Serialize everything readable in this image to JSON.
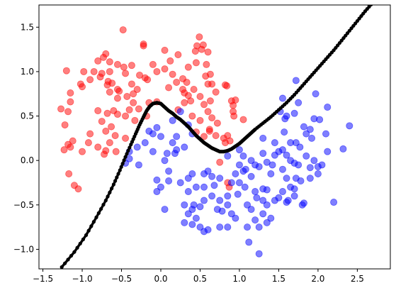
{
  "chart_data": {
    "type": "scatter",
    "title": "",
    "xlabel": "",
    "ylabel": "",
    "xlim": [
      -1.55,
      2.92
    ],
    "ylim": [
      -1.22,
      1.75
    ],
    "grid": false,
    "x_ticks": [
      "−1.5",
      "−1.0",
      "−0.5",
      "0.0",
      "0.5",
      "1.0",
      "1.5",
      "2.0",
      "2.5"
    ],
    "x_tick_values": [
      -1.5,
      -1.0,
      -0.5,
      0.0,
      0.5,
      1.0,
      1.5,
      2.0,
      2.5
    ],
    "y_ticks": [
      "−1.0",
      "−0.5",
      "0.0",
      "0.5",
      "1.0",
      "1.5"
    ],
    "y_tick_values": [
      -1.0,
      -0.5,
      0.0,
      0.5,
      1.0,
      1.5
    ],
    "series": [
      {
        "color": "#ff0000",
        "marker": "circle",
        "opacity": 0.5,
        "points": [
          [
            -0.48,
            1.47
          ],
          [
            0.49,
            1.39
          ],
          [
            0.46,
            1.29
          ],
          [
            0.54,
            1.3
          ],
          [
            0.52,
            1.25
          ],
          [
            -0.7,
            1.2
          ],
          [
            -0.73,
            1.16
          ],
          [
            -0.22,
            1.31
          ],
          [
            -0.22,
            1.29
          ],
          [
            0.05,
            1.24
          ],
          [
            0.22,
            1.19
          ],
          [
            0.44,
            1.23
          ],
          [
            0.6,
            1.22
          ],
          [
            -0.8,
            1.12
          ],
          [
            -0.65,
            1.11
          ],
          [
            -0.55,
            1.08
          ],
          [
            -0.47,
            1.05
          ],
          [
            -0.37,
            1.07
          ],
          [
            -0.1,
            1.08
          ],
          [
            0.12,
            1.12
          ],
          [
            0.35,
            1.05
          ],
          [
            0.45,
            1.1
          ],
          [
            0.58,
            1.08
          ],
          [
            -1.2,
            1.01
          ],
          [
            -0.98,
            1.0
          ],
          [
            -0.85,
            1.0
          ],
          [
            -0.75,
            0.98
          ],
          [
            -0.65,
            1.0
          ],
          [
            -0.45,
            0.98
          ],
          [
            -0.27,
            0.96
          ],
          [
            -0.2,
            0.93
          ],
          [
            -0.05,
            1.0
          ],
          [
            0.05,
            1.03
          ],
          [
            0.15,
            0.97
          ],
          [
            0.28,
            0.92
          ],
          [
            0.57,
            0.95
          ],
          [
            0.63,
            0.97
          ],
          [
            -0.9,
            0.91
          ],
          [
            -0.77,
            0.94
          ],
          [
            -0.67,
            0.89
          ],
          [
            -0.62,
            0.87
          ],
          [
            -0.37,
            0.86
          ],
          [
            -0.17,
            0.91
          ],
          [
            0.2,
            0.88
          ],
          [
            0.33,
            0.88
          ],
          [
            0.6,
            0.86
          ],
          [
            -1.02,
            0.86
          ],
          [
            -1.0,
            0.83
          ],
          [
            -0.68,
            0.85
          ],
          [
            -0.55,
            0.8
          ],
          [
            -0.3,
            0.8
          ],
          [
            0.1,
            0.82
          ],
          [
            0.28,
            0.8
          ],
          [
            0.42,
            0.8
          ],
          [
            0.65,
            0.86
          ],
          [
            0.7,
            0.77
          ],
          [
            0.82,
            0.85
          ],
          [
            0.84,
            0.84
          ],
          [
            -0.65,
            0.77
          ],
          [
            -0.53,
            0.78
          ],
          [
            -0.35,
            0.75
          ],
          [
            0.3,
            0.76
          ],
          [
            0.35,
            0.73
          ],
          [
            0.5,
            0.72
          ],
          [
            -1.15,
            0.76
          ],
          [
            -0.55,
            0.7
          ],
          [
            -0.43,
            0.72
          ],
          [
            0.38,
            0.67
          ],
          [
            0.63,
            0.67
          ],
          [
            0.9,
            0.67
          ],
          [
            0.95,
            0.68
          ],
          [
            -1.15,
            0.66
          ],
          [
            -0.35,
            0.65
          ],
          [
            -0.15,
            0.65
          ],
          [
            -0.05,
            0.66
          ],
          [
            0.3,
            0.65
          ],
          [
            0.55,
            0.63
          ],
          [
            0.92,
            0.62
          ],
          [
            -1.27,
            0.58
          ],
          [
            -1.18,
            0.55
          ],
          [
            -0.8,
            0.56
          ],
          [
            -0.68,
            0.53
          ],
          [
            -0.6,
            0.56
          ],
          [
            -0.4,
            0.57
          ],
          [
            -0.28,
            0.58
          ],
          [
            0.22,
            0.57
          ],
          [
            0.6,
            0.55
          ],
          [
            0.92,
            0.55
          ],
          [
            -0.45,
            0.5
          ],
          [
            -0.55,
            0.52
          ],
          [
            -0.18,
            0.5
          ],
          [
            0.4,
            0.5
          ],
          [
            0.65,
            0.48
          ],
          [
            0.93,
            0.5
          ],
          [
            1.05,
            0.46
          ],
          [
            -0.75,
            0.44
          ],
          [
            -0.33,
            0.45
          ],
          [
            0.5,
            0.45
          ],
          [
            0.72,
            0.42
          ],
          [
            -1.22,
            0.4
          ],
          [
            -0.63,
            0.38
          ],
          [
            0.62,
            0.35
          ],
          [
            0.62,
            0.33
          ],
          [
            -0.7,
            0.33
          ],
          [
            0.45,
            0.32
          ],
          [
            -0.9,
            0.3
          ],
          [
            -0.58,
            0.28
          ],
          [
            0.7,
            0.28
          ],
          [
            0.85,
            0.28
          ],
          [
            0.55,
            0.27
          ],
          [
            -0.45,
            0.25
          ],
          [
            0.8,
            0.25
          ],
          [
            -1.12,
            0.22
          ],
          [
            -1.18,
            0.18
          ],
          [
            -1.23,
            0.12
          ],
          [
            -0.65,
            0.2
          ],
          [
            -0.92,
            0.2
          ],
          [
            0.88,
            0.22
          ],
          [
            0.82,
            0.2
          ],
          [
            -1.15,
            0.15
          ],
          [
            -0.8,
            0.15
          ],
          [
            -0.7,
            0.11
          ],
          [
            -0.57,
            0.1
          ],
          [
            -1.0,
            0.1
          ],
          [
            -0.72,
            0.07
          ],
          [
            -1.17,
            -0.15
          ],
          [
            -1.1,
            -0.28
          ],
          [
            -1.05,
            -0.32
          ],
          [
            0.75,
            -0.02
          ],
          [
            0.85,
            -0.25
          ],
          [
            0.87,
            -0.3
          ]
        ]
      },
      {
        "color": "#0000ff",
        "marker": "circle",
        "opacity": 0.5,
        "points": [
          [
            1.72,
            0.9
          ],
          [
            1.97,
            0.75
          ],
          [
            1.55,
            0.7
          ],
          [
            1.75,
            0.65
          ],
          [
            2.12,
            0.6
          ],
          [
            1.52,
            0.55
          ],
          [
            1.6,
            0.5
          ],
          [
            1.7,
            0.53
          ],
          [
            1.95,
            0.47
          ],
          [
            1.58,
            0.47
          ],
          [
            2.02,
            0.46
          ],
          [
            2.4,
            0.39
          ],
          [
            1.82,
            0.38
          ],
          [
            1.9,
            0.35
          ],
          [
            1.57,
            0.32
          ],
          [
            1.85,
            0.3
          ],
          [
            2.1,
            0.3
          ],
          [
            1.3,
            0.25
          ],
          [
            1.92,
            0.25
          ],
          [
            1.45,
            0.2
          ],
          [
            1.65,
            0.2
          ],
          [
            1.72,
            0.2
          ],
          [
            1.77,
            0.15
          ],
          [
            2.32,
            0.13
          ],
          [
            2.12,
            0.1
          ],
          [
            1.55,
            0.12
          ],
          [
            1.3,
            0.08
          ],
          [
            1.45,
            0.06
          ],
          [
            1.6,
            0.06
          ],
          [
            1.85,
            0.05
          ],
          [
            1.95,
            0.0
          ],
          [
            1.65,
            0.0
          ],
          [
            2.05,
            -0.05
          ],
          [
            1.15,
            0.0
          ],
          [
            1.05,
            0.05
          ],
          [
            1.35,
            -0.02
          ],
          [
            1.42,
            -0.05
          ],
          [
            1.7,
            -0.03
          ],
          [
            1.75,
            -0.05
          ],
          [
            1.9,
            -0.08
          ],
          [
            2.0,
            -0.07
          ],
          [
            1.55,
            -0.1
          ],
          [
            1.25,
            -0.07
          ],
          [
            1.08,
            -0.1
          ],
          [
            0.95,
            -0.15
          ],
          [
            1.05,
            -0.12
          ],
          [
            1.15,
            -0.18
          ],
          [
            1.6,
            -0.2
          ],
          [
            1.72,
            -0.2
          ],
          [
            1.9,
            -0.2
          ],
          [
            2.0,
            -0.15
          ],
          [
            1.78,
            -0.23
          ],
          [
            0.75,
            -0.2
          ],
          [
            0.65,
            -0.18
          ],
          [
            0.55,
            -0.15
          ],
          [
            0.6,
            -0.12
          ],
          [
            0.4,
            -0.15
          ],
          [
            0.35,
            -0.2
          ],
          [
            0.25,
            -0.25
          ],
          [
            0.1,
            -0.23
          ],
          [
            -0.05,
            -0.22
          ],
          [
            0.0,
            -0.3
          ],
          [
            1.0,
            -0.25
          ],
          [
            0.9,
            -0.25
          ],
          [
            0.68,
            -0.28
          ],
          [
            0.55,
            -0.3
          ],
          [
            0.45,
            -0.3
          ],
          [
            0.35,
            -0.35
          ],
          [
            1.3,
            -0.32
          ],
          [
            1.35,
            -0.33
          ],
          [
            1.55,
            -0.35
          ],
          [
            1.65,
            -0.3
          ],
          [
            1.7,
            -0.32
          ],
          [
            1.62,
            -0.45
          ],
          [
            1.6,
            -0.47
          ],
          [
            1.7,
            -0.4
          ],
          [
            1.82,
            -0.48
          ],
          [
            1.8,
            -0.5
          ],
          [
            1.5,
            -0.42
          ],
          [
            1.45,
            -0.45
          ],
          [
            2.2,
            -0.47
          ],
          [
            1.07,
            -0.3
          ],
          [
            1.2,
            -0.35
          ],
          [
            1.22,
            -0.42
          ],
          [
            0.98,
            -0.38
          ],
          [
            0.85,
            -0.4
          ],
          [
            0.75,
            -0.45
          ],
          [
            0.65,
            -0.4
          ],
          [
            0.55,
            -0.45
          ],
          [
            0.42,
            -0.5
          ],
          [
            0.5,
            -0.52
          ],
          [
            0.4,
            -0.55
          ],
          [
            0.3,
            -0.5
          ],
          [
            0.85,
            -0.5
          ],
          [
            0.72,
            -0.55
          ],
          [
            1.3,
            -0.45
          ],
          [
            1.35,
            -0.5
          ],
          [
            1.15,
            -0.55
          ],
          [
            1.1,
            -0.5
          ],
          [
            1.3,
            -0.6
          ],
          [
            1.4,
            -0.65
          ],
          [
            1.35,
            -0.7
          ],
          [
            1.2,
            -0.67
          ],
          [
            1.25,
            -0.75
          ],
          [
            0.9,
            -0.6
          ],
          [
            0.95,
            -0.65
          ],
          [
            0.85,
            -0.75
          ],
          [
            0.75,
            -0.75
          ],
          [
            0.6,
            -0.78
          ],
          [
            0.5,
            -0.75
          ],
          [
            0.55,
            -0.8
          ],
          [
            0.35,
            -0.6
          ],
          [
            0.45,
            -0.65
          ],
          [
            0.3,
            -0.7
          ],
          [
            0.4,
            -0.72
          ],
          [
            0.05,
            -0.55
          ],
          [
            -0.05,
            -0.35
          ],
          [
            0.1,
            -0.12
          ],
          [
            0.05,
            0.0
          ],
          [
            0.18,
            0.08
          ],
          [
            0.2,
            0.12
          ],
          [
            0.3,
            0.15
          ],
          [
            0.15,
            0.2
          ],
          [
            0.0,
            0.27
          ],
          [
            -0.05,
            0.37
          ],
          [
            -0.1,
            0.3
          ],
          [
            -0.15,
            0.33
          ],
          [
            -0.2,
            0.2
          ],
          [
            -0.3,
            0.15
          ],
          [
            -0.4,
            0.1
          ],
          [
            -0.4,
            0.02
          ],
          [
            -0.45,
            -0.03
          ],
          [
            -0.28,
            -0.05
          ],
          [
            -0.1,
            0.1
          ],
          [
            0.08,
            0.08
          ],
          [
            0.2,
            0.27
          ],
          [
            0.15,
            0.45
          ],
          [
            0.25,
            0.55
          ],
          [
            0.35,
            0.4
          ],
          [
            0.4,
            0.3
          ],
          [
            0.85,
            0.05
          ],
          [
            1.0,
            0.12
          ],
          [
            1.2,
            -0.05
          ],
          [
            1.0,
            -0.05
          ],
          [
            1.5,
            0.1
          ],
          [
            1.4,
            -0.15
          ],
          [
            1.1,
            -0.75
          ],
          [
            1.12,
            -0.92
          ],
          [
            1.25,
            -1.05
          ],
          [
            0.78,
            -0.57
          ]
        ]
      }
    ],
    "boundary": {
      "color": "#000000",
      "x": [
        -1.26,
        -1.1,
        -0.95,
        -0.82,
        -0.7,
        -0.6,
        -0.52,
        -0.45,
        -0.38,
        -0.32,
        -0.27,
        -0.22,
        -0.18,
        -0.14,
        -0.1,
        -0.05,
        0.0,
        0.05,
        0.1,
        0.15,
        0.2,
        0.25,
        0.3,
        0.35,
        0.4,
        0.45,
        0.5,
        0.55,
        0.6,
        0.65,
        0.7,
        0.75,
        0.8,
        0.85,
        0.9,
        0.95,
        1.0,
        1.05,
        1.1,
        1.15,
        1.2,
        1.3,
        1.4,
        1.5,
        1.6,
        1.7,
        1.8,
        1.9,
        2.0,
        2.1,
        2.2,
        2.3,
        2.4,
        2.5,
        2.6,
        2.7
      ],
      "y": [
        -1.2,
        -1.03,
        -0.84,
        -0.64,
        -0.45,
        -0.27,
        -0.11,
        0.04,
        0.18,
        0.3,
        0.4,
        0.49,
        0.56,
        0.61,
        0.64,
        0.65,
        0.64,
        0.6,
        0.56,
        0.53,
        0.49,
        0.46,
        0.42,
        0.38,
        0.33,
        0.28,
        0.24,
        0.2,
        0.17,
        0.14,
        0.12,
        0.1,
        0.1,
        0.11,
        0.13,
        0.16,
        0.19,
        0.23,
        0.27,
        0.31,
        0.35,
        0.42,
        0.49,
        0.57,
        0.65,
        0.74,
        0.84,
        0.94,
        1.04,
        1.14,
        1.24,
        1.35,
        1.46,
        1.57,
        1.68,
        1.78
      ]
    }
  }
}
